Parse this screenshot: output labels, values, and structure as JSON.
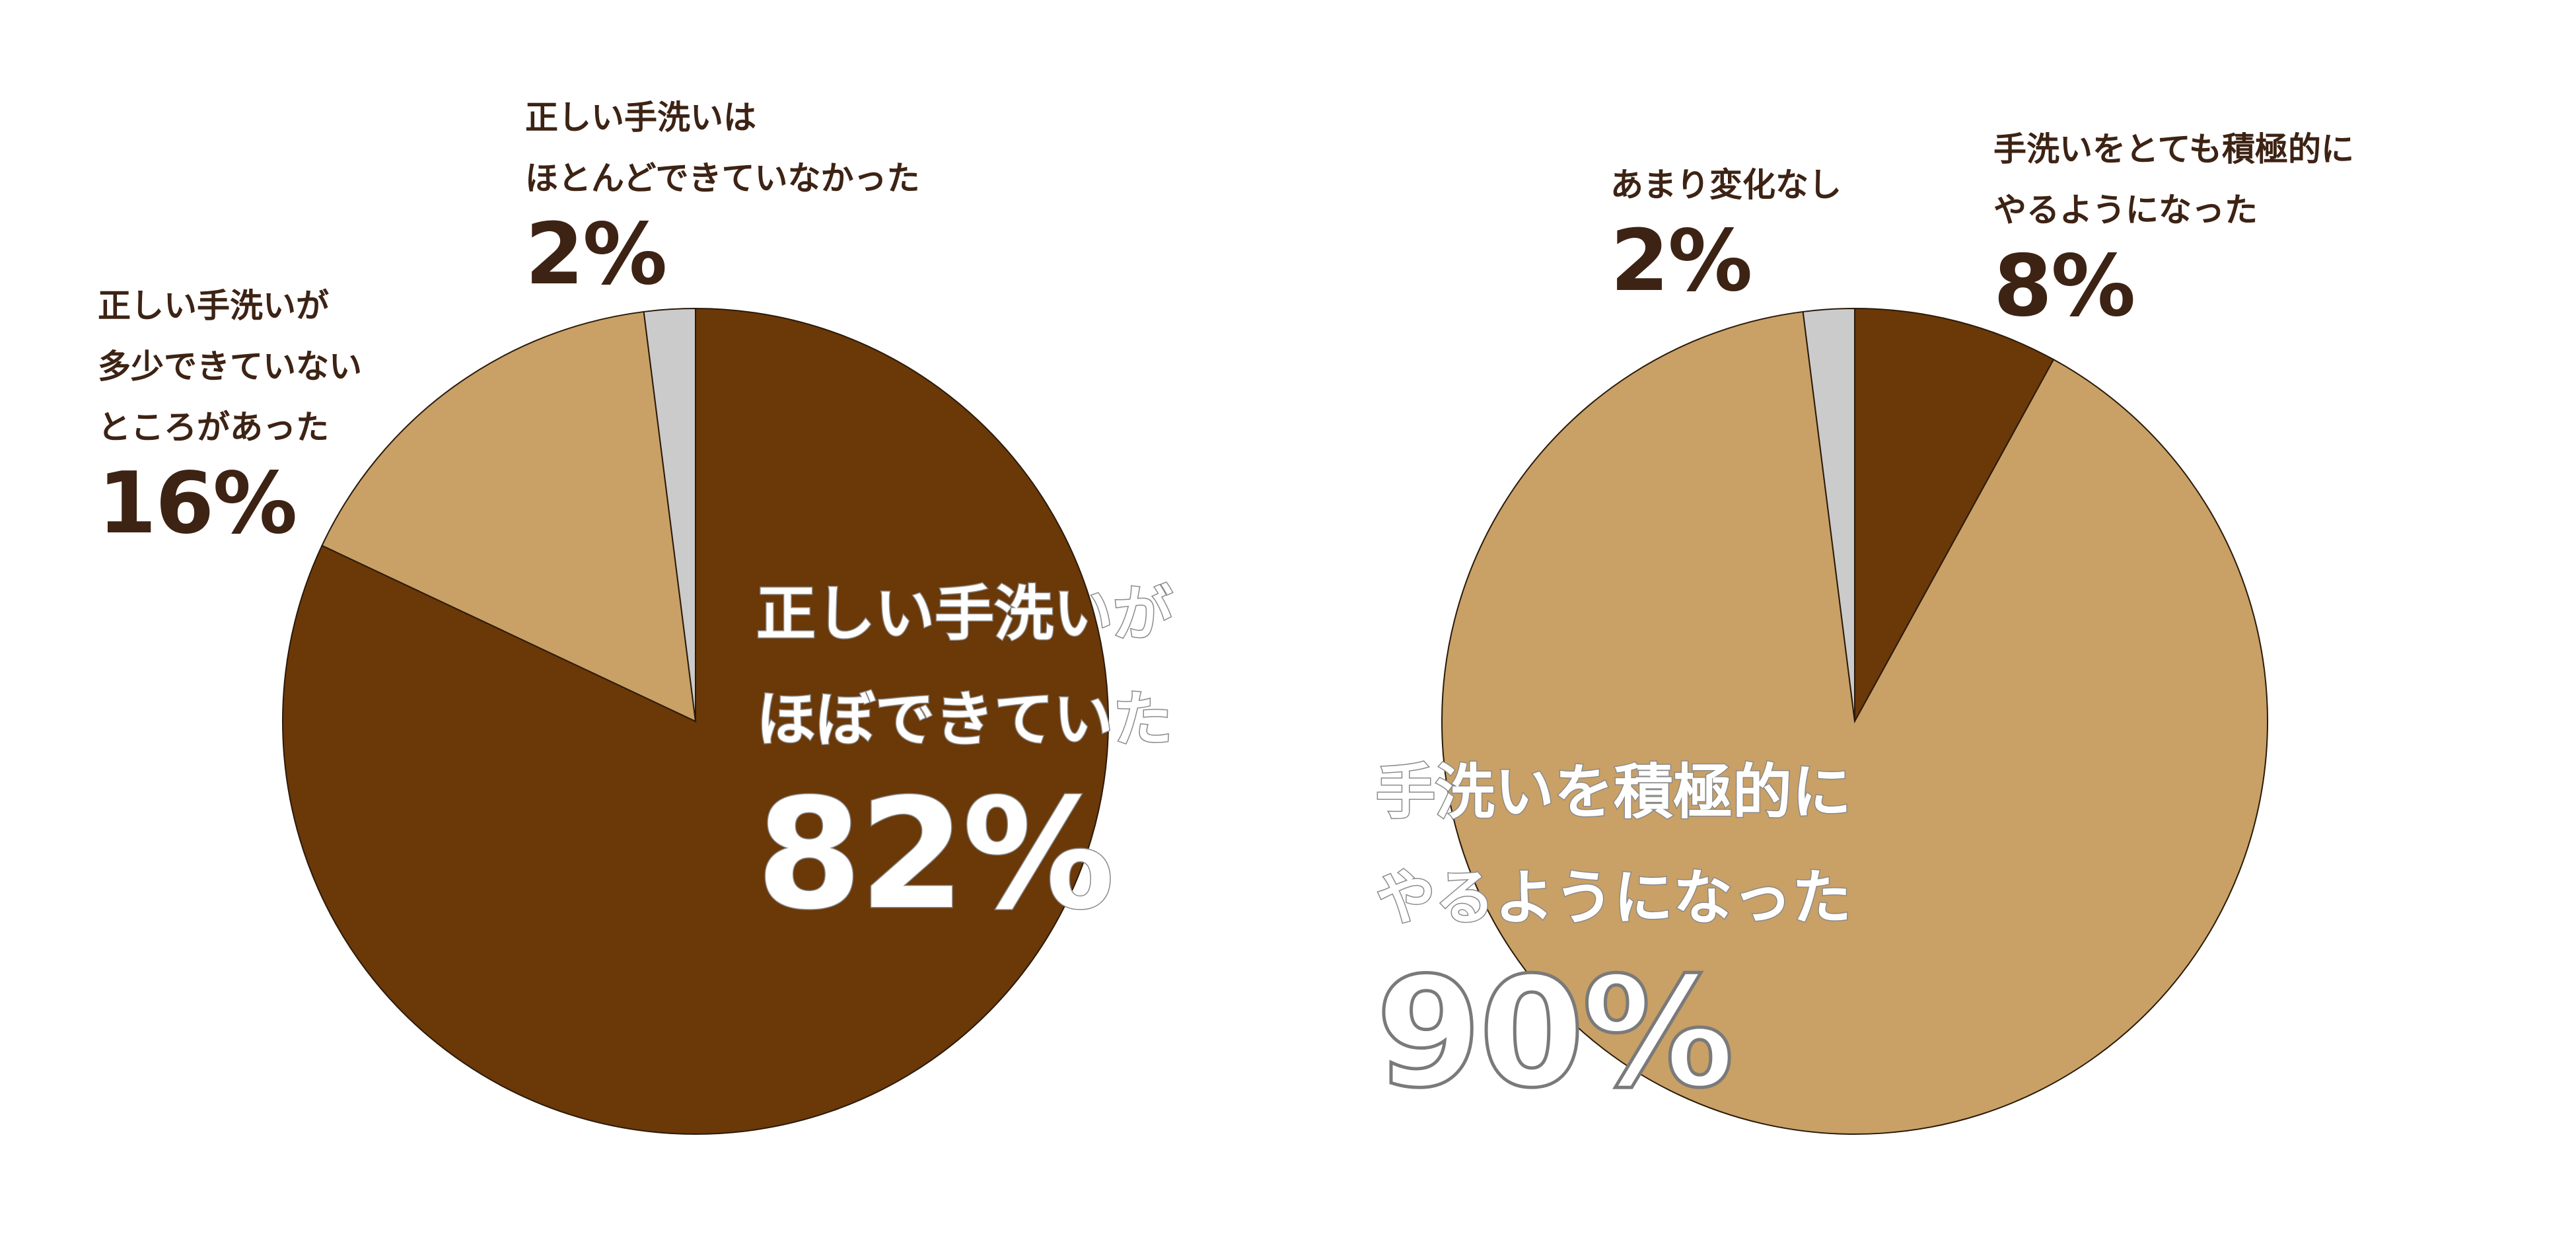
{
  "colors": {
    "dark_brown": "#6b3808",
    "tan": "#c9a065",
    "gray": "#cbcbcb",
    "label_text": "#3d2314",
    "slice_stroke": "#2a1a0a"
  },
  "chart_data": [
    {
      "type": "pie",
      "title": "",
      "slices": [
        {
          "line1": "正しい手洗いが",
          "line2": "ほぼできていた",
          "value": 82,
          "value_label": "82%",
          "color": "#6b3808"
        },
        {
          "line1": "正しい手洗いが",
          "line2": "多少できていない",
          "line3": "ところがあった",
          "value": 16,
          "value_label": "16%",
          "color": "#c9a065"
        },
        {
          "line1": "正しい手洗いは",
          "line2": "ほとんどできていなかった",
          "value": 2,
          "value_label": "2%",
          "color": "#cbcbcb"
        }
      ]
    },
    {
      "type": "pie",
      "title": "",
      "slices": [
        {
          "line1": "手洗いをとても積極的に",
          "line2": "やるようになった",
          "value": 8,
          "value_label": "8%",
          "color": "#6b3808"
        },
        {
          "line1": "手洗いを積極的に",
          "line2": "やるようになった",
          "value": 90,
          "value_label": "90%",
          "color": "#c9a065"
        },
        {
          "line1": "あまり変化なし",
          "value": 2,
          "value_label": "2%",
          "color": "#cbcbcb"
        }
      ]
    }
  ]
}
